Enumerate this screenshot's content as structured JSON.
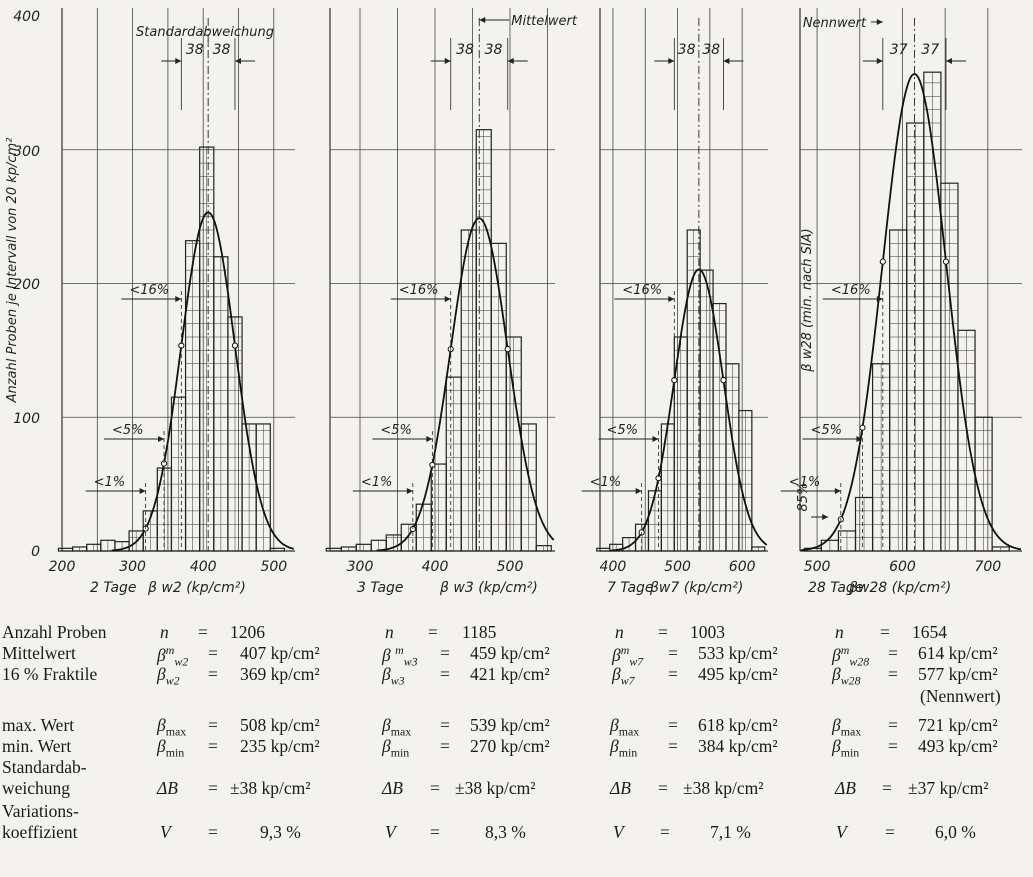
{
  "chart_data": [
    {
      "type": "bar",
      "panel": "2 Tage",
      "ylabel": "Anzahl Proben je Intervall von 20 kp/cm²",
      "xlabel": "β w2 (kp/cm²)",
      "bin_width": 20,
      "xlim": [
        200,
        530
      ],
      "ylim": [
        0,
        400
      ],
      "ticks": [
        200,
        300,
        400,
        500
      ],
      "bins": [
        [
          205,
          2
        ],
        [
          225,
          3
        ],
        [
          245,
          5
        ],
        [
          265,
          8
        ],
        [
          285,
          7
        ],
        [
          305,
          15
        ],
        [
          325,
          30
        ],
        [
          345,
          62
        ],
        [
          365,
          115
        ],
        [
          385,
          232
        ],
        [
          405,
          302
        ],
        [
          425,
          220
        ],
        [
          445,
          175
        ],
        [
          465,
          95
        ],
        [
          485,
          95
        ],
        [
          505,
          2
        ]
      ],
      "normal_fit": {
        "mean": 407,
        "sd": 38,
        "n": 1206
      },
      "annotations": {
        "std_label": "Standardabweichung",
        "sd_left": "38",
        "sd_right": "38",
        "p16": "<16%",
        "p5": "<5%",
        "p1": "<1%"
      }
    },
    {
      "type": "bar",
      "panel": "3 Tage",
      "xlabel": "β w3 (kp/cm²)",
      "bin_width": 20,
      "xlim": [
        260,
        560
      ],
      "ticks": [
        300,
        400,
        500
      ],
      "bins": [
        [
          265,
          2
        ],
        [
          285,
          3
        ],
        [
          305,
          5
        ],
        [
          325,
          8
        ],
        [
          345,
          12
        ],
        [
          365,
          20
        ],
        [
          385,
          35
        ],
        [
          405,
          65
        ],
        [
          425,
          130
        ],
        [
          445,
          240
        ],
        [
          465,
          315
        ],
        [
          485,
          230
        ],
        [
          505,
          160
        ],
        [
          525,
          95
        ],
        [
          545,
          4
        ]
      ],
      "normal_fit": {
        "mean": 459,
        "sd": 38,
        "n": 1185
      },
      "annotations": {
        "mean_label": "Mittelwert",
        "sd_left": "38",
        "sd_right": "38",
        "p16": "<16%",
        "p5": "<5%",
        "p1": "<1%"
      }
    },
    {
      "type": "bar",
      "panel": "7 Tage",
      "xlabel": "βw7 (kp/cm²)",
      "bin_width": 20,
      "xlim": [
        380,
        640
      ],
      "ticks": [
        400,
        500,
        600
      ],
      "bins": [
        [
          385,
          2
        ],
        [
          405,
          5
        ],
        [
          425,
          10
        ],
        [
          445,
          20
        ],
        [
          465,
          45
        ],
        [
          485,
          95
        ],
        [
          505,
          160
        ],
        [
          525,
          240
        ],
        [
          545,
          210
        ],
        [
          565,
          185
        ],
        [
          585,
          140
        ],
        [
          605,
          105
        ],
        [
          625,
          3
        ]
      ],
      "normal_fit": {
        "mean": 533,
        "sd": 38,
        "n": 1003
      },
      "annotations": {
        "sd_left": "38",
        "sd_right": "38",
        "p16": "<16%",
        "p5": "<5%",
        "p1": "<1%"
      }
    },
    {
      "type": "bar",
      "panel": "28 Tage",
      "xlabel": "βw28 (kp/cm²)",
      "bin_width": 20,
      "xlim": [
        480,
        740
      ],
      "ticks": [
        500,
        600,
        700
      ],
      "bins": [
        [
          495,
          2
        ],
        [
          515,
          8
        ],
        [
          535,
          15
        ],
        [
          555,
          40
        ],
        [
          575,
          140
        ],
        [
          595,
          240
        ],
        [
          615,
          320
        ],
        [
          635,
          358
        ],
        [
          655,
          275
        ],
        [
          675,
          165
        ],
        [
          695,
          100
        ],
        [
          715,
          3
        ]
      ],
      "normal_fit": {
        "mean": 614,
        "sd": 37,
        "n": 1654
      },
      "annotations": {
        "nennwert_label": "Nennwert",
        "sd_left": "37",
        "sd_right": "37",
        "p16": "<16%",
        "p5": "<5%",
        "p1": "<1%",
        "min_sia": "β w28  (min. nach SIA)",
        "p85": "85%"
      }
    }
  ],
  "yticks": [
    "0",
    "100",
    "200",
    "300",
    "400"
  ],
  "stats": {
    "row_labels": [
      "Anzahl Proben",
      "Mittelwert",
      "16 % Fraktile",
      "max. Wert",
      "min. Wert",
      "Standardab-",
      "weichung",
      "Variations-",
      "koeffizient"
    ],
    "nennwert_note": "(Nennwert)",
    "columns": [
      {
        "n": "1206",
        "mean": "407 kp/cm²",
        "frac16": "369 kp/cm²",
        "max": "508 kp/cm²",
        "min": "235 kp/cm²",
        "sd": "±38 kp/cm²",
        "v": "9,3 %",
        "sub": "w2"
      },
      {
        "n": "1185",
        "mean": "459 kp/cm²",
        "frac16": "421 kp/cm²",
        "max": "539 kp/cm²",
        "min": "270 kp/cm²",
        "sd": "±38 kp/cm²",
        "v": "8,3 %",
        "sub": "w3"
      },
      {
        "n": "1003",
        "mean": "533 kp/cm²",
        "frac16": "495 kp/cm²",
        "max": "618 kp/cm²",
        "min": "384 kp/cm²",
        "sd": "±38 kp/cm²",
        "v": "7,1 %",
        "sub": "w7"
      },
      {
        "n": "1654",
        "mean": "614 kp/cm²",
        "frac16": "577 kp/cm²",
        "max": "721 kp/cm²",
        "min": "493 kp/cm²",
        "sd": "±37 kp/cm²",
        "v": "6,0 %",
        "sub": "w28"
      }
    ]
  }
}
